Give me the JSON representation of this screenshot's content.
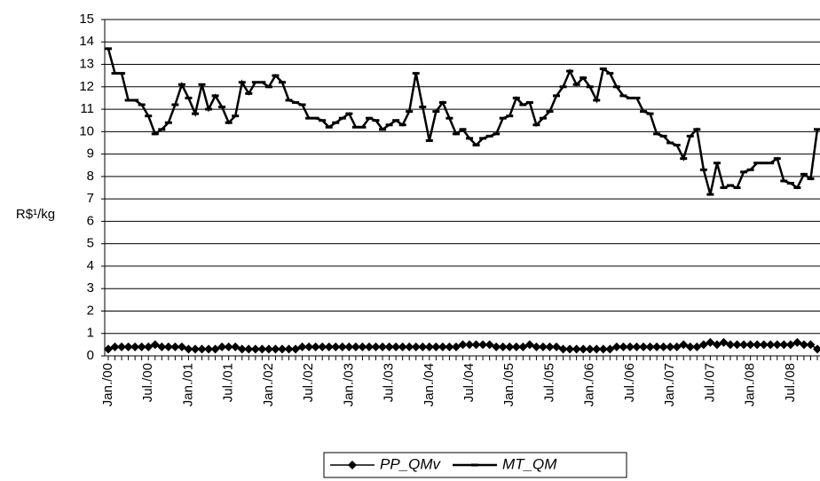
{
  "chart_data": {
    "type": "line",
    "y_label": "R$¹/kg",
    "categories": [
      "Jan./00",
      null,
      null,
      null,
      null,
      null,
      "Jul./00",
      null,
      null,
      null,
      null,
      null,
      "Jan./01",
      null,
      null,
      null,
      null,
      null,
      "Jul./01",
      null,
      null,
      null,
      null,
      null,
      "Jan./02",
      null,
      null,
      null,
      null,
      null,
      "Jul./02",
      null,
      null,
      null,
      null,
      null,
      "Jan./03",
      null,
      null,
      null,
      null,
      null,
      "Jul./03",
      null,
      null,
      null,
      null,
      null,
      "Jan./04",
      null,
      null,
      null,
      null,
      null,
      "Jul./04",
      null,
      null,
      null,
      null,
      null,
      "Jan./05",
      null,
      null,
      null,
      null,
      null,
      "Jul./05",
      null,
      null,
      null,
      null,
      null,
      "Jan./06",
      null,
      null,
      null,
      null,
      null,
      "Jul./06",
      null,
      null,
      null,
      null,
      null,
      "Jan./07",
      null,
      null,
      null,
      null,
      null,
      "Jul./07",
      null,
      null,
      null,
      null,
      null,
      "Jan./08",
      null,
      null,
      null,
      null,
      null,
      "Jul./08",
      null,
      null,
      null,
      null
    ],
    "series": [
      {
        "name": "PP_QMv",
        "color": "#000000",
        "marker": "diamond",
        "values": [
          0.3,
          0.4,
          0.4,
          0.4,
          0.4,
          0.4,
          0.4,
          0.5,
          0.4,
          0.4,
          0.4,
          0.4,
          0.3,
          0.3,
          0.3,
          0.3,
          0.3,
          0.4,
          0.4,
          0.4,
          0.3,
          0.3,
          0.3,
          0.3,
          0.3,
          0.3,
          0.3,
          0.3,
          0.3,
          0.4,
          0.4,
          0.4,
          0.4,
          0.4,
          0.4,
          0.4,
          0.4,
          0.4,
          0.4,
          0.4,
          0.4,
          0.4,
          0.4,
          0.4,
          0.4,
          0.4,
          0.4,
          0.4,
          0.4,
          0.4,
          0.4,
          0.4,
          0.4,
          0.5,
          0.5,
          0.5,
          0.5,
          0.5,
          0.4,
          0.4,
          0.4,
          0.4,
          0.4,
          0.5,
          0.4,
          0.4,
          0.4,
          0.4,
          0.3,
          0.3,
          0.3,
          0.3,
          0.3,
          0.3,
          0.3,
          0.3,
          0.4,
          0.4,
          0.4,
          0.4,
          0.4,
          0.4,
          0.4,
          0.4,
          0.4,
          0.4,
          0.5,
          0.4,
          0.4,
          0.5,
          0.6,
          0.5,
          0.6,
          0.5,
          0.5,
          0.5,
          0.5,
          0.5,
          0.5,
          0.5,
          0.5,
          0.5,
          0.5,
          0.6,
          0.5,
          0.5,
          0.3
        ]
      },
      {
        "name": "MT_QM",
        "color": "#000000",
        "marker": "dash",
        "values": [
          13.7,
          12.6,
          12.6,
          11.4,
          11.4,
          11.2,
          10.7,
          9.9,
          10.1,
          10.4,
          11.2,
          12.1,
          11.5,
          10.8,
          12.1,
          11.0,
          11.6,
          11.1,
          10.4,
          10.7,
          12.2,
          11.7,
          12.2,
          12.2,
          12.0,
          12.5,
          12.2,
          11.4,
          11.3,
          11.2,
          10.6,
          10.6,
          10.5,
          10.2,
          10.4,
          10.6,
          10.8,
          10.2,
          10.2,
          10.6,
          10.5,
          10.1,
          10.3,
          10.5,
          10.3,
          10.9,
          12.6,
          11.1,
          9.6,
          10.9,
          11.3,
          10.6,
          9.9,
          10.1,
          9.7,
          9.4,
          9.7,
          9.8,
          9.9,
          10.6,
          10.7,
          11.5,
          11.2,
          11.3,
          10.3,
          10.6,
          10.9,
          11.6,
          12.0,
          12.7,
          12.1,
          12.4,
          12.0,
          11.4,
          12.8,
          12.6,
          12.0,
          11.6,
          11.5,
          11.5,
          10.9,
          10.8,
          9.9,
          9.8,
          9.5,
          9.4,
          8.8,
          9.8,
          10.1,
          8.3,
          7.2,
          8.6,
          7.5,
          7.6,
          7.5,
          8.2,
          8.3,
          8.6,
          8.6,
          8.6,
          8.8,
          7.8,
          7.7,
          7.5,
          8.1,
          7.9,
          10.1
        ]
      }
    ],
    "ylim": [
      0,
      15
    ],
    "yticks": [
      0,
      1,
      2,
      3,
      4,
      5,
      6,
      7,
      8,
      9,
      10,
      11,
      12,
      13,
      14,
      15
    ],
    "grid": true,
    "legend": "bottom"
  }
}
